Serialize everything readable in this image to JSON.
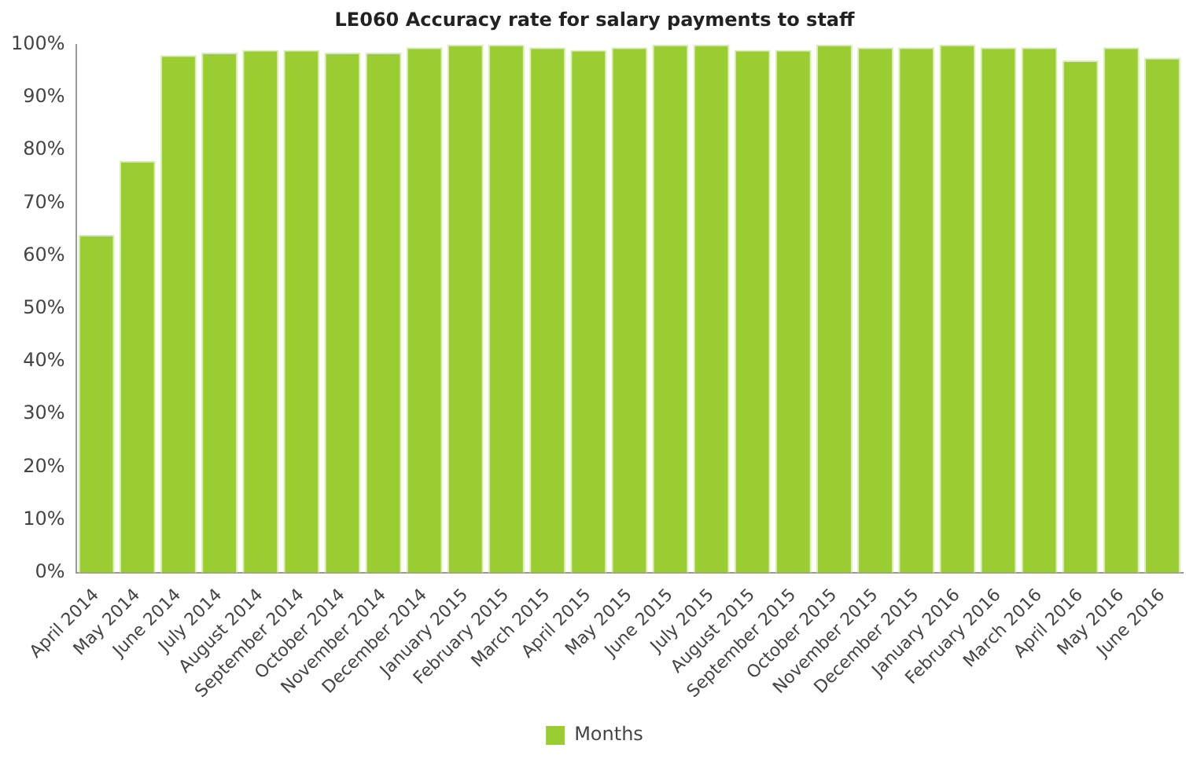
{
  "chart_data": {
    "type": "bar",
    "title": "LE060 Accuracy rate for salary payments to staff",
    "categories": [
      "April 2014",
      "May 2014",
      "June 2014",
      "July 2014",
      "August 2014",
      "September 2014",
      "October 2014",
      "November 2014",
      "December 2014",
      "January 2015",
      "February 2015",
      "March 2015",
      "April 2015",
      "May 2015",
      "June 2015",
      "July 2015",
      "August 2015",
      "September 2015",
      "October 2015",
      "November 2015",
      "December 2015",
      "January 2016",
      "February 2016",
      "March 2016",
      "April 2016",
      "May 2016",
      "June 2016"
    ],
    "series": [
      {
        "name": "Months",
        "color": "#9acd32",
        "values": [
          64,
          78,
          98,
          98.5,
          99,
          99,
          98.5,
          98.5,
          99.5,
          100,
          100,
          99.5,
          99,
          99.5,
          100,
          100,
          99,
          99,
          100,
          99.5,
          99.5,
          100,
          99.5,
          99.5,
          97,
          99.5,
          97.5
        ]
      }
    ],
    "ylim": [
      0,
      100
    ],
    "yticks": [
      {
        "value": 0,
        "label": "0%"
      },
      {
        "value": 10,
        "label": "10%"
      },
      {
        "value": 20,
        "label": "20%"
      },
      {
        "value": 30,
        "label": "30%"
      },
      {
        "value": 40,
        "label": "40%"
      },
      {
        "value": 50,
        "label": "50%"
      },
      {
        "value": 60,
        "label": "60%"
      },
      {
        "value": 70,
        "label": "70%"
      },
      {
        "value": 80,
        "label": "80%"
      },
      {
        "value": 90,
        "label": "90%"
      },
      {
        "value": 100,
        "label": "100%"
      }
    ],
    "grid": false,
    "legend": "bottom"
  }
}
